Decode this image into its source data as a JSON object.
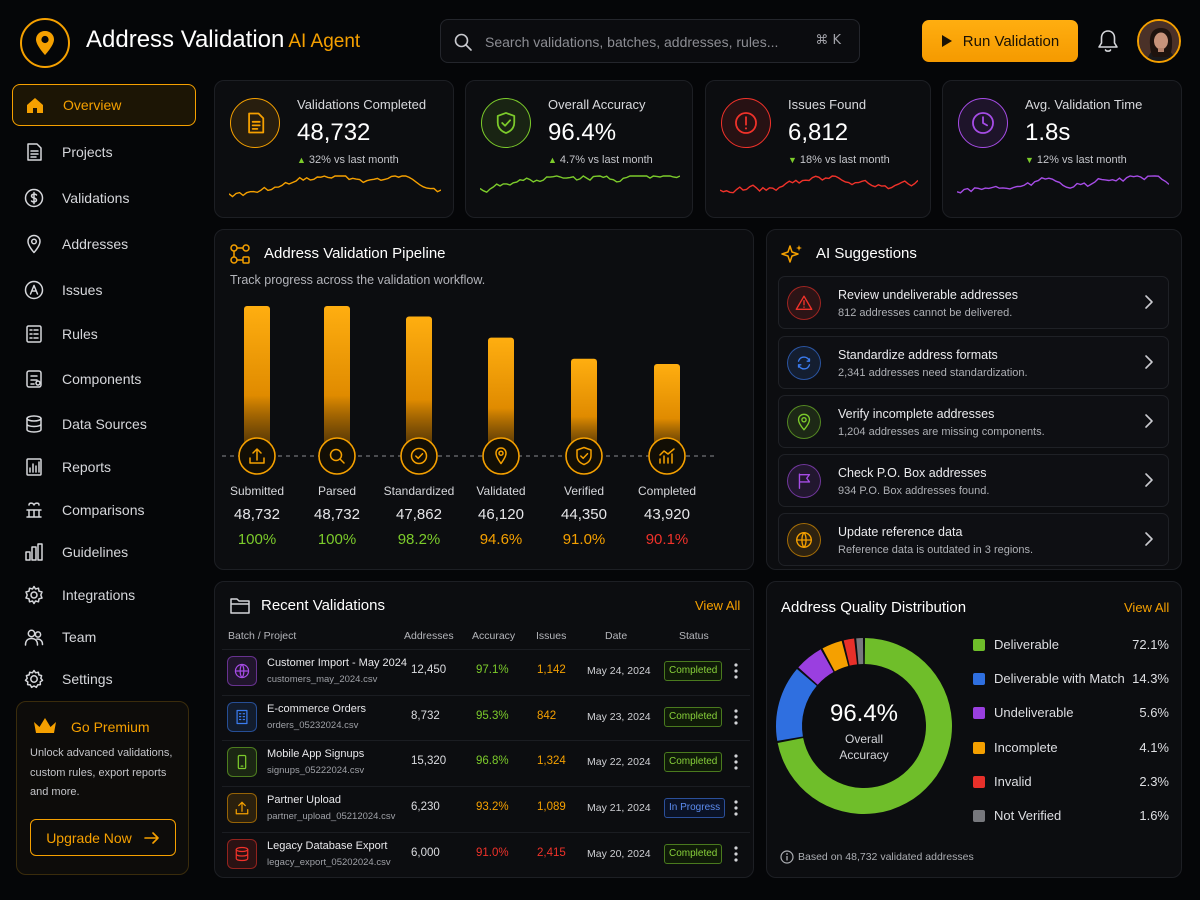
{
  "header": {
    "title": "Address Validation",
    "subtitle": "AI Agent",
    "search_placeholder": "Search validations, batches, addresses, rules...",
    "search_shortcut": "⌘ K",
    "run_button": "Run Validation"
  },
  "sidebar": {
    "items": [
      {
        "label": "Overview",
        "icon": "home-icon"
      },
      {
        "label": "Projects",
        "icon": "document-icon"
      },
      {
        "label": "Validations",
        "icon": "dollar-icon"
      },
      {
        "label": "Addresses",
        "icon": "location-icon"
      },
      {
        "label": "Issues",
        "icon": "warning-icon"
      },
      {
        "label": "Rules",
        "icon": "rules-icon"
      },
      {
        "label": "Components",
        "icon": "components-icon"
      },
      {
        "label": "Data Sources",
        "icon": "database-icon"
      },
      {
        "label": "Reports",
        "icon": "reports-icon"
      },
      {
        "label": "Comparisons",
        "icon": "comparison-icon"
      },
      {
        "label": "Guidelines",
        "icon": "guidelines-icon"
      },
      {
        "label": "Integrations",
        "icon": "gear-icon"
      },
      {
        "label": "Team",
        "icon": "team-icon"
      },
      {
        "label": "Settings",
        "icon": "settings-icon"
      }
    ],
    "premium": {
      "title": "Go Premium",
      "text": "Unlock advanced validations, custom rules, export reports and more.",
      "button": "Upgrade Now"
    }
  },
  "stats": [
    {
      "label": "Validations Completed",
      "value": "48,732",
      "change": "32%",
      "direction": "up",
      "suffix": "vs last month",
      "color": "#f5a000"
    },
    {
      "label": "Overall Accuracy",
      "value": "96.4%",
      "change": "4.7%",
      "direction": "up",
      "suffix": "vs last month",
      "color": "#7ccb2b"
    },
    {
      "label": "Issues Found",
      "value": "6,812",
      "change": "18%",
      "direction": "down",
      "suffix": "vs last month",
      "color": "#f0322a"
    },
    {
      "label": "Avg. Validation Time",
      "value": "1.8s",
      "change": "12%",
      "direction": "down",
      "suffix": "vs last month",
      "color": "#a64ce6"
    }
  ],
  "pipeline": {
    "title": "Address Validation Pipeline",
    "subtitle": "Track progress across the validation workflow.",
    "stages": [
      {
        "name": "Submitted",
        "count": "48,732",
        "pct": "100%",
        "value": 100,
        "color": "#7ccb2b"
      },
      {
        "name": "Parsed",
        "count": "48,732",
        "pct": "100%",
        "value": 100,
        "color": "#7ccb2b"
      },
      {
        "name": "Standardized",
        "count": "47,862",
        "pct": "98.2%",
        "value": 98.2,
        "color": "#7ccb2b"
      },
      {
        "name": "Validated",
        "count": "46,120",
        "pct": "94.6%",
        "value": 94.6,
        "color": "#f5a000"
      },
      {
        "name": "Verified",
        "count": "44,350",
        "pct": "91.0%",
        "value": 91.0,
        "color": "#f5a000"
      },
      {
        "name": "Completed",
        "count": "43,920",
        "pct": "90.1%",
        "value": 90.1,
        "color": "#f0322a"
      }
    ]
  },
  "suggestions": {
    "title": "AI Suggestions",
    "items": [
      {
        "title": "Review undeliverable addresses",
        "desc": "812 addresses cannot be delivered.",
        "icon": "alert-triangle-icon",
        "color": "#f0322a"
      },
      {
        "title": "Standardize address formats",
        "desc": "2,341 addresses need standardization.",
        "icon": "refresh-icon",
        "color": "#3b7cf0"
      },
      {
        "title": "Verify incomplete addresses",
        "desc": "1,204 addresses are missing components.",
        "icon": "location-icon",
        "color": "#7ccb2b"
      },
      {
        "title": "Check P.O. Box addresses",
        "desc": "934 P.O. Box addresses found.",
        "icon": "flag-icon",
        "color": "#a64ce6"
      },
      {
        "title": "Update reference data",
        "desc": "Reference data is outdated in 3 regions.",
        "icon": "globe-icon",
        "color": "#f5a000"
      }
    ]
  },
  "recent": {
    "title": "Recent Validations",
    "view_all": "View All",
    "columns": [
      "Batch / Project",
      "Addresses",
      "Accuracy",
      "Issues",
      "Date",
      "Status"
    ],
    "rows": [
      {
        "name": "Customer Import - May 2024",
        "file": "customers_may_2024.csv",
        "addresses": "12,450",
        "accuracy": "97.1%",
        "issues": "1,142",
        "date": "May 24, 2024",
        "status": "Completed",
        "icon": "globe-icon",
        "color": "#a64ce6",
        "acc_color": "#7ccb2b",
        "iss_color": "#f5a000"
      },
      {
        "name": "E-commerce Orders",
        "file": "orders_05232024.csv",
        "addresses": "8,732",
        "accuracy": "95.3%",
        "issues": "842",
        "date": "May 23, 2024",
        "status": "Completed",
        "icon": "building-icon",
        "color": "#3b7cf0",
        "acc_color": "#7ccb2b",
        "iss_color": "#f5a000"
      },
      {
        "name": "Mobile App Signups",
        "file": "signups_05222024.csv",
        "addresses": "15,320",
        "accuracy": "96.8%",
        "issues": "1,324",
        "date": "May 22, 2024",
        "status": "Completed",
        "icon": "phone-icon",
        "color": "#7ccb2b",
        "acc_color": "#7ccb2b",
        "iss_color": "#f5a000"
      },
      {
        "name": "Partner Upload",
        "file": "partner_upload_05212024.csv",
        "addresses": "6,230",
        "accuracy": "93.2%",
        "issues": "1,089",
        "date": "May 21, 2024",
        "status": "In Progress",
        "icon": "upload-icon",
        "color": "#f5a000",
        "acc_color": "#f5a000",
        "iss_color": "#f5a000"
      },
      {
        "name": "Legacy Database Export",
        "file": "legacy_export_05202024.csv",
        "addresses": "6,000",
        "accuracy": "91.0%",
        "issues": "2,415",
        "date": "May 20, 2024",
        "status": "Completed",
        "icon": "database-icon",
        "color": "#f0322a",
        "acc_color": "#f0322a",
        "iss_color": "#f0322a"
      }
    ]
  },
  "quality": {
    "title": "Address Quality Distribution",
    "view_all": "View All",
    "center_value": "96.4%",
    "center_label_1": "Overall",
    "center_label_2": "Accuracy",
    "footnote": "Based on 48,732 validated addresses",
    "items": [
      {
        "name": "Deliverable",
        "pct": "72.1%",
        "value": 72.1,
        "color": "#6fbe2a"
      },
      {
        "name": "Deliverable with Match",
        "pct": "14.3%",
        "value": 14.3,
        "color": "#2f6fe0"
      },
      {
        "name": "Undeliverable",
        "pct": "5.6%",
        "value": 5.6,
        "color": "#9a3fe0"
      },
      {
        "name": "Incomplete",
        "pct": "4.1%",
        "value": 4.1,
        "color": "#f5a000"
      },
      {
        "name": "Invalid",
        "pct": "2.3%",
        "value": 2.3,
        "color": "#e8302a"
      },
      {
        "name": "Not Verified",
        "pct": "1.6%",
        "value": 1.6,
        "color": "#77787d"
      }
    ]
  }
}
